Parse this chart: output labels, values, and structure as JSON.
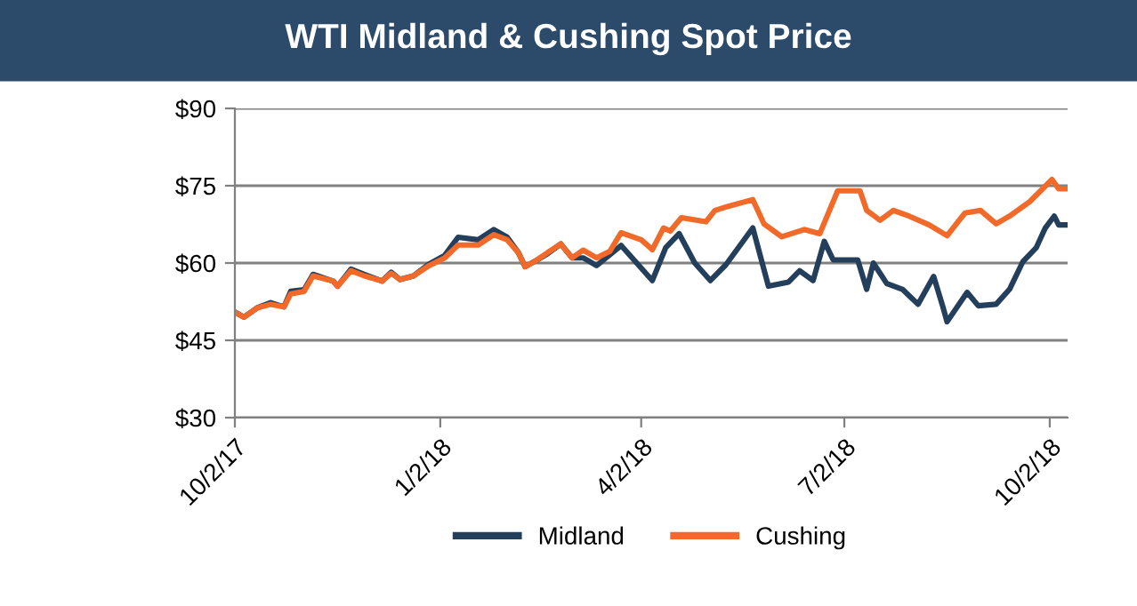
{
  "chart_data": {
    "type": "line",
    "title": "WTI Midland & Cushing Spot Price",
    "series": [
      {
        "name": "Midland",
        "color": "#243f5c",
        "x": [
          "2017-10-02",
          "2017-10-06",
          "2017-10-12",
          "2017-10-18",
          "2017-10-24",
          "2017-10-27",
          "2017-11-02",
          "2017-11-06",
          "2017-11-15",
          "2017-11-17",
          "2017-11-23",
          "2017-11-29",
          "2017-12-07",
          "2017-12-11",
          "2017-12-15",
          "2017-12-21",
          "2017-12-28",
          "2018-01-04",
          "2018-01-10",
          "2018-01-19",
          "2018-01-26",
          "2018-02-01",
          "2018-02-06",
          "2018-02-09",
          "2018-02-14",
          "2018-02-19",
          "2018-02-25",
          "2018-03-02",
          "2018-03-07",
          "2018-03-13",
          "2018-03-24",
          "2018-04-07",
          "2018-04-13",
          "2018-04-19",
          "2018-04-26",
          "2018-05-03",
          "2018-05-10",
          "2018-05-22",
          "2018-05-29",
          "2018-06-07",
          "2018-06-12",
          "2018-06-18",
          "2018-06-23",
          "2018-06-27",
          "2018-07-08",
          "2018-07-12",
          "2018-07-15",
          "2018-07-21",
          "2018-07-28",
          "2018-08-04",
          "2018-08-11",
          "2018-08-15",
          "2018-08-17",
          "2018-08-26",
          "2018-08-31",
          "2018-09-08",
          "2018-09-14",
          "2018-09-20",
          "2018-09-26",
          "2018-09-30",
          "2018-10-04",
          "2018-10-06",
          "2018-10-09"
        ],
        "values": [
          50.5,
          49.5,
          51.3,
          52.3,
          51.5,
          54.5,
          54.8,
          57.8,
          56.5,
          55.5,
          58.8,
          57.8,
          56.5,
          58.2,
          56.8,
          57.5,
          59.8,
          61.5,
          65,
          64.5,
          66.5,
          65,
          62,
          59.3,
          60.5,
          61.8,
          63.7,
          61,
          61,
          59.5,
          63.4,
          56.6,
          63,
          65.7,
          60,
          56.6,
          59.7,
          66.8,
          55.5,
          56.3,
          58.5,
          56.6,
          64.2,
          60.6,
          60.6,
          54.9,
          60,
          56,
          54.9,
          52,
          57.4,
          51.7,
          48.6,
          54.3,
          51.7,
          52,
          54.9,
          60.3,
          63,
          66.8,
          69.1,
          67.4,
          67.4
        ]
      },
      {
        "name": "Cushing",
        "color": "#f26a2a",
        "x": [
          "2017-10-02",
          "2017-10-06",
          "2017-10-12",
          "2017-10-18",
          "2017-10-24",
          "2017-10-27",
          "2017-11-02",
          "2017-11-06",
          "2017-11-15",
          "2017-11-17",
          "2017-11-23",
          "2017-11-29",
          "2017-12-07",
          "2017-12-11",
          "2017-12-15",
          "2017-12-21",
          "2017-12-28",
          "2018-01-04",
          "2018-01-10",
          "2018-01-19",
          "2018-01-26",
          "2018-02-01",
          "2018-02-06",
          "2018-02-09",
          "2018-02-14",
          "2018-02-19",
          "2018-02-25",
          "2018-03-02",
          "2018-03-07",
          "2018-03-13",
          "2018-03-19",
          "2018-03-24",
          "2018-04-02",
          "2018-04-07",
          "2018-04-12",
          "2018-04-15",
          "2018-04-20",
          "2018-05-01",
          "2018-05-05",
          "2018-05-11",
          "2018-05-22",
          "2018-05-27",
          "2018-06-04",
          "2018-06-14",
          "2018-06-21",
          "2018-06-29",
          "2018-07-09",
          "2018-07-12",
          "2018-07-18",
          "2018-07-24",
          "2018-07-31",
          "2018-08-09",
          "2018-08-17",
          "2018-08-25",
          "2018-09-01",
          "2018-09-08",
          "2018-09-14",
          "2018-09-23",
          "2018-10-03",
          "2018-10-06",
          "2018-10-09"
        ],
        "values": [
          50.5,
          49.5,
          51.3,
          52,
          51.5,
          54,
          54.5,
          57.5,
          56.5,
          55.5,
          58.5,
          57.5,
          56.5,
          58,
          56.8,
          57.5,
          59.5,
          61,
          63.5,
          63.5,
          65.5,
          64.5,
          62,
          59.3,
          60.5,
          62,
          63.7,
          61,
          62.5,
          61,
          62.3,
          65.9,
          64.5,
          62.6,
          66.8,
          66.2,
          68.8,
          68,
          70.2,
          71,
          72.3,
          67.6,
          65.1,
          66.5,
          65.7,
          74,
          74,
          70.2,
          68.3,
          70.2,
          69.1,
          67.4,
          65.3,
          69.7,
          70.2,
          67.6,
          69.1,
          71.9,
          76.2,
          74.4,
          74.4
        ]
      }
    ],
    "xlim": [
      "2017-10-02",
      "2018-10-10"
    ],
    "xticks": [
      {
        "value": "2017-10-02",
        "label": "10/2/17"
      },
      {
        "value": "2018-01-02",
        "label": "1/2/18"
      },
      {
        "value": "2018-04-02",
        "label": "4/2/18"
      },
      {
        "value": "2018-07-02",
        "label": "7/2/18"
      },
      {
        "value": "2018-10-02",
        "label": "10/2/18"
      }
    ],
    "ylim": [
      30,
      90
    ],
    "yticks": [
      {
        "value": 30,
        "label": "$30"
      },
      {
        "value": 45,
        "label": "$45"
      },
      {
        "value": 60,
        "label": "$60"
      },
      {
        "value": 75,
        "label": "$75"
      },
      {
        "value": 90,
        "label": "$90"
      }
    ],
    "grid": "y",
    "legend": "bottom",
    "marker": "none",
    "line_style": "solid"
  }
}
